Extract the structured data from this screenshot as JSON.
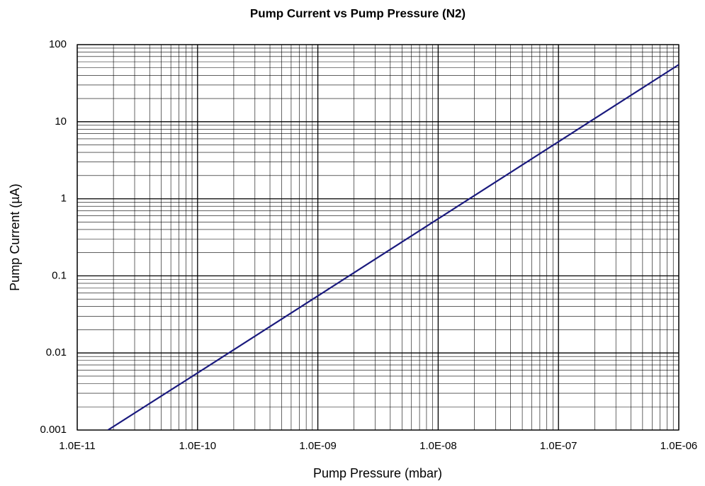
{
  "chart_data": {
    "type": "line",
    "title": "Pump Current vs Pump Pressure (N2)",
    "x_label": "Pump Pressure (mbar)",
    "y_label": "Pump Current (µA)",
    "x": [
      1.8e-11,
      1e-10,
      1e-09,
      1e-08,
      1e-07,
      1e-06
    ],
    "series": [
      {
        "name": "N2",
        "color": "#1a1a7e",
        "values": [
          0.001,
          0.0055,
          0.055,
          0.55,
          5.5,
          55
        ]
      }
    ],
    "xlim": [
      1e-11,
      1e-06
    ],
    "ylim": [
      0.001,
      100
    ],
    "xticks": [
      {
        "value": 1e-11,
        "label": "1.0E-11"
      },
      {
        "value": 1e-10,
        "label": "1.0E-10"
      },
      {
        "value": 1e-09,
        "label": "1.0E-09"
      },
      {
        "value": 1e-08,
        "label": "1.0E-08"
      },
      {
        "value": 1e-07,
        "label": "1.0E-07"
      },
      {
        "value": 1e-06,
        "label": "1.0E-06"
      }
    ],
    "yticks": [
      0.001,
      0.01,
      0.1,
      1,
      10,
      100
    ],
    "xscale": "log",
    "yscale": "log",
    "grid": true,
    "minor_grid": true,
    "legend": false
  }
}
